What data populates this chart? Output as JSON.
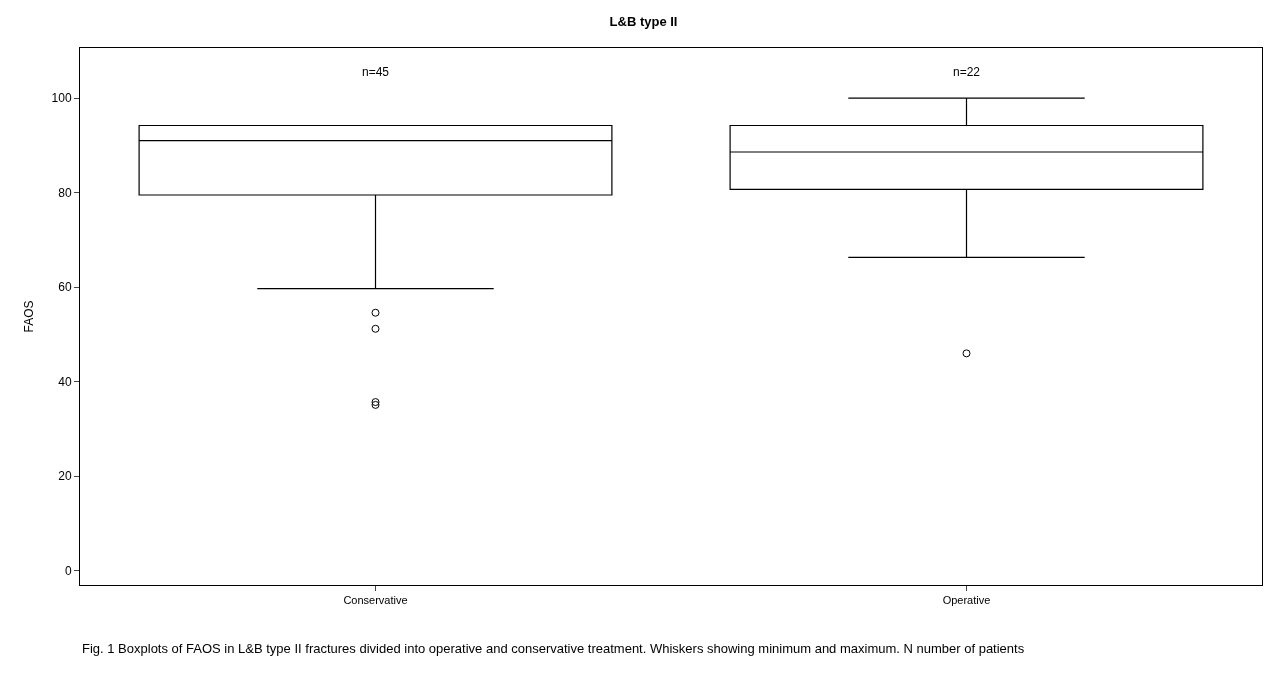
{
  "chart_data": {
    "type": "box",
    "title": "L&B type II",
    "ylabel": "FAOS",
    "categories": [
      "Conservative",
      "Operative"
    ],
    "boxes": [
      {
        "low": 59.7,
        "q1": 79.5,
        "median": 91.0,
        "q3": 94.2,
        "high": 94.2,
        "outliers": [
          54.6,
          51.2,
          35.7,
          35.1
        ]
      },
      {
        "low": 66.3,
        "q1": 80.7,
        "median": 88.6,
        "q3": 94.2,
        "high": 100,
        "outliers": [
          46.0
        ]
      }
    ],
    "ylim": [
      -3,
      110.6
    ],
    "yticks": [
      0,
      20,
      40,
      60,
      80,
      100
    ],
    "marker": "circle",
    "annotations": [
      "n=45",
      "n=22",
      "Fig. 1 Boxplots of FAOS in L&B type II fractures divided into operative and conservative treatment. Whiskers showing minimum and maximum. N number of patients"
    ]
  }
}
